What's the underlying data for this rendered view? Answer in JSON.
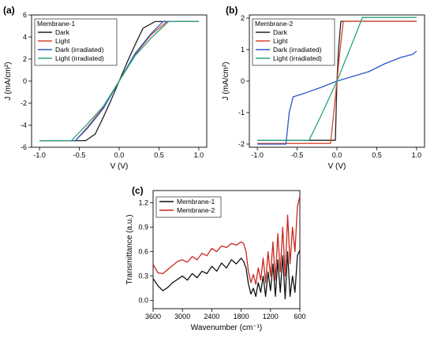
{
  "panels": [
    {
      "label": "(a)",
      "chart_data": {
        "type": "line",
        "title": "Membrane-1",
        "xlabel": "V (V)",
        "ylabel": "J (mA/cm²)",
        "xlim": [
          -1.1,
          1.1
        ],
        "ylim": [
          -6,
          6
        ],
        "xticks": [
          -1.0,
          -0.5,
          0.0,
          0.5,
          1.0
        ],
        "xtick_labels": [
          "-1.0",
          "-0.5",
          "0.0",
          "0.5",
          "1.0"
        ],
        "yticks": [
          -6,
          -4,
          -2,
          0,
          2,
          4,
          6
        ],
        "ytick_labels": [
          "-6",
          "-4",
          "-2",
          "0",
          "2",
          "4",
          "6"
        ],
        "legend_position": "top-left",
        "series": [
          {
            "name": "Dark",
            "color": "#222222",
            "x": [
              -1.0,
              -0.42,
              -0.3,
              -0.2,
              -0.1,
              0.0,
              0.1,
              0.2,
              0.3,
              0.45,
              0.55,
              1.0
            ],
            "y": [
              -5.4,
              -5.4,
              -4.8,
              -3.3,
              -1.7,
              0.0,
              1.7,
              3.3,
              4.8,
              5.4,
              5.4,
              5.4
            ]
          },
          {
            "name": "Light",
            "color": "#d9452b",
            "x": [
              -1.0,
              -0.55,
              -0.4,
              -0.2,
              0.0,
              0.2,
              0.4,
              0.6,
              1.0
            ],
            "y": [
              -5.4,
              -5.4,
              -4.2,
              -2.4,
              0.0,
              2.4,
              4.2,
              5.4,
              5.4
            ]
          },
          {
            "name": "Dark (irradiated)",
            "color": "#2a58c9",
            "x": [
              -1.0,
              -0.55,
              -0.4,
              -0.2,
              0.0,
              0.2,
              0.4,
              0.55,
              1.0
            ],
            "y": [
              -5.4,
              -5.4,
              -4.3,
              -2.5,
              0.0,
              2.5,
              4.3,
              5.4,
              5.4
            ]
          },
          {
            "name": "Light (irradiated)",
            "color": "#2aa37a",
            "x": [
              -1.0,
              -0.6,
              -0.4,
              -0.2,
              0.0,
              0.2,
              0.4,
              0.62,
              1.0
            ],
            "y": [
              -5.4,
              -5.4,
              -3.9,
              -2.3,
              0.0,
              2.3,
              3.9,
              5.4,
              5.4
            ]
          }
        ]
      }
    },
    {
      "label": "(b)",
      "chart_data": {
        "type": "line",
        "title": "Membrane-2",
        "xlabel": "V (V)",
        "ylabel": "J (mA/cm²)",
        "xlim": [
          -1.1,
          1.1
        ],
        "ylim": [
          -2.1,
          2.1
        ],
        "xticks": [
          -1.0,
          -0.5,
          0.0,
          0.5,
          1.0
        ],
        "xtick_labels": [
          "-1.0",
          "-0.5",
          "0.0",
          "0.5",
          "1.0"
        ],
        "yticks": [
          -2,
          -1,
          0,
          1,
          2
        ],
        "ytick_labels": [
          "-2",
          "-1",
          "0",
          "1",
          "2"
        ],
        "legend_position": "top-left",
        "series": [
          {
            "name": "Dark",
            "color": "#222222",
            "x": [
              -1.0,
              -0.02,
              0.0,
              0.02,
              0.05,
              1.0
            ],
            "y": [
              -1.88,
              -1.88,
              0.0,
              1.0,
              1.9,
              1.9
            ]
          },
          {
            "name": "Light",
            "color": "#d9452b",
            "x": [
              -1.0,
              -0.08,
              -0.04,
              0.0,
              0.04,
              0.08,
              1.0
            ],
            "y": [
              -1.98,
              -1.98,
              -1.0,
              0.0,
              1.0,
              1.9,
              1.9
            ]
          },
          {
            "name": "Dark (irradiated)",
            "color": "#2a58c9",
            "x": [
              -1.0,
              -0.64,
              -0.6,
              -0.55,
              -0.4,
              -0.2,
              0.0,
              0.2,
              0.4,
              0.6,
              0.8,
              0.95,
              1.0
            ],
            "y": [
              -2.0,
              -2.0,
              -1.0,
              -0.5,
              -0.38,
              -0.2,
              0.0,
              0.15,
              0.3,
              0.55,
              0.75,
              0.85,
              0.95
            ]
          },
          {
            "name": "Light (irradiated)",
            "color": "#2aa37a",
            "x": [
              -1.0,
              -0.35,
              -0.2,
              0.0,
              0.2,
              0.32,
              1.0
            ],
            "y": [
              -1.88,
              -1.88,
              -1.1,
              0.0,
              1.25,
              2.02,
              2.02
            ]
          }
        ]
      }
    },
    {
      "label": "(c)",
      "chart_data": {
        "type": "line",
        "title": "",
        "xlabel": "Wavenumber (cm⁻¹)",
        "ylabel": "Transmittance (a.u.)",
        "xlim": [
          3600,
          600
        ],
        "ylim": [
          -0.1,
          1.35
        ],
        "xticks": [
          3600,
          3000,
          2400,
          1800,
          1200,
          600
        ],
        "xtick_labels": [
          "3600",
          "3000",
          "2400",
          "1800",
          "1200",
          "600"
        ],
        "yticks": [
          0.0,
          0.3,
          0.6,
          0.9,
          1.2
        ],
        "ytick_labels": [
          "0.0",
          "0.3",
          "0.6",
          "0.9",
          "1.2"
        ],
        "legend_position": "top-left",
        "series": [
          {
            "name": "Membrane-1",
            "color": "#111111",
            "x": [
              3600,
              3500,
              3400,
              3300,
              3200,
              3100,
              3000,
              2900,
              2800,
              2700,
              2600,
              2500,
              2400,
              2300,
              2200,
              2100,
              2000,
              1900,
              1800,
              1750,
              1700,
              1650,
              1600,
              1550,
              1500,
              1450,
              1400,
              1350,
              1300,
              1250,
              1200,
              1150,
              1100,
              1050,
              1000,
              950,
              900,
              850,
              800,
              750,
              700,
              650,
              600
            ],
            "y": [
              0.27,
              0.18,
              0.12,
              0.16,
              0.22,
              0.26,
              0.3,
              0.25,
              0.33,
              0.28,
              0.36,
              0.33,
              0.42,
              0.36,
              0.46,
              0.4,
              0.5,
              0.45,
              0.52,
              0.48,
              0.4,
              0.2,
              0.08,
              0.15,
              0.05,
              0.22,
              0.1,
              0.3,
              0.05,
              0.35,
              0.12,
              0.45,
              0.05,
              0.5,
              0.1,
              0.55,
              0.02,
              0.6,
              0.05,
              0.3,
              0.1,
              0.55,
              0.62
            ]
          },
          {
            "name": "Membrane-2",
            "color": "#c8281e",
            "x": [
              3600,
              3500,
              3400,
              3300,
              3200,
              3100,
              3000,
              2900,
              2800,
              2700,
              2600,
              2500,
              2400,
              2300,
              2200,
              2100,
              2000,
              1900,
              1800,
              1750,
              1700,
              1650,
              1600,
              1550,
              1500,
              1450,
              1400,
              1350,
              1300,
              1250,
              1200,
              1150,
              1100,
              1050,
              1000,
              950,
              900,
              850,
              800,
              750,
              700,
              650,
              600
            ],
            "y": [
              0.44,
              0.34,
              0.33,
              0.38,
              0.43,
              0.48,
              0.5,
              0.47,
              0.54,
              0.5,
              0.58,
              0.55,
              0.64,
              0.6,
              0.67,
              0.65,
              0.7,
              0.68,
              0.72,
              0.7,
              0.6,
              0.35,
              0.22,
              0.32,
              0.2,
              0.4,
              0.25,
              0.52,
              0.22,
              0.6,
              0.3,
              0.72,
              0.25,
              0.82,
              0.35,
              0.9,
              0.3,
              1.05,
              0.45,
              0.9,
              0.6,
              1.15,
              1.28
            ]
          }
        ]
      }
    }
  ]
}
